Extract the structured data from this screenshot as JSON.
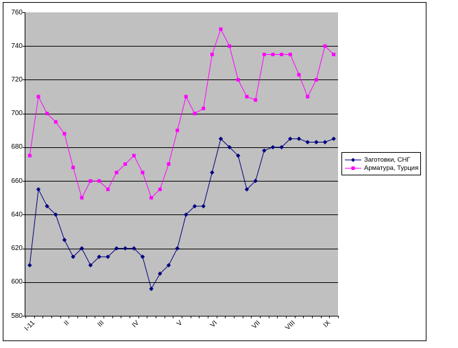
{
  "chart_data": {
    "type": "line",
    "title": "",
    "plot_bg": "#c0c0c0",
    "page_bg": "#ffffff",
    "grid": "horizontal",
    "legend_position": "right",
    "ylim": [
      580,
      760
    ],
    "yticks": [
      760,
      740,
      720,
      700,
      680,
      660,
      640,
      620,
      600,
      580
    ],
    "categories_count": 36,
    "x_tick_labels": [
      {
        "label": "I-11",
        "index": 0
      },
      {
        "label": "II",
        "index": 4
      },
      {
        "label": "III",
        "index": 8
      },
      {
        "label": "IV",
        "index": 12
      },
      {
        "label": "V",
        "index": 17
      },
      {
        "label": "VI",
        "index": 21
      },
      {
        "label": "VII",
        "index": 26
      },
      {
        "label": "VIII",
        "index": 30
      },
      {
        "label": "IX",
        "index": 34
      }
    ],
    "series": [
      {
        "name": "Заготовки, СНГ",
        "color": "#000080",
        "marker": "diamond",
        "values": [
          610,
          655,
          645,
          640,
          625,
          615,
          620,
          610,
          615,
          615,
          620,
          620,
          620,
          615,
          596,
          605,
          610,
          620,
          640,
          645,
          645,
          665,
          685,
          680,
          675,
          655,
          660,
          678,
          680,
          680,
          685,
          685,
          683,
          683,
          683,
          685
        ]
      },
      {
        "name": "Арматура, Турция",
        "color": "#ff00ff",
        "marker": "square",
        "values": [
          675,
          710,
          700,
          695,
          688,
          668,
          650,
          660,
          660,
          655,
          665,
          670,
          675,
          665,
          650,
          655,
          670,
          690,
          710,
          700,
          703,
          735,
          750,
          740,
          720,
          710,
          708,
          735,
          735,
          735,
          735,
          723,
          710,
          720,
          740,
          735
        ]
      }
    ]
  }
}
